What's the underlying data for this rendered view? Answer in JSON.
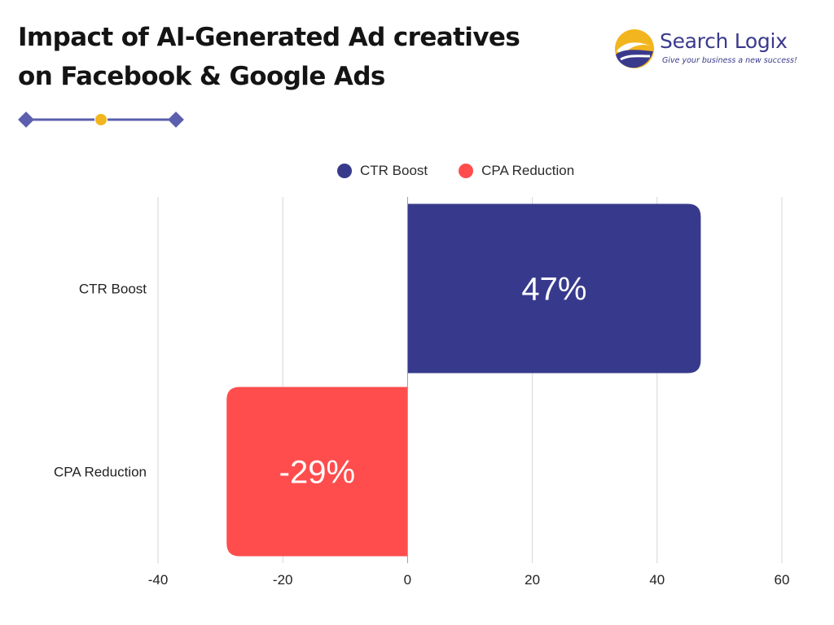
{
  "header": {
    "title_line1": "Impact of AI-Generated Ad creatives",
    "title_line2": "on Facebook & Google Ads"
  },
  "logo": {
    "name": "Search Logix",
    "tagline": "Give your business a new success!"
  },
  "colors": {
    "ctr": "#373a8c",
    "cpa": "#ff4d4d",
    "accent_line": "#5b5fae",
    "accent_dot": "#f2b51d",
    "grid": "#d6d6d6"
  },
  "chart_data": {
    "type": "bar",
    "orientation": "horizontal",
    "categories": [
      "CTR Boost",
      "CPA Reduction"
    ],
    "series": [
      {
        "name": "CTR Boost",
        "category": "CTR Boost",
        "value": 47,
        "label": "47%",
        "color": "#373a8c"
      },
      {
        "name": "CPA Reduction",
        "category": "CPA Reduction",
        "value": -29,
        "label": "-29%",
        "color": "#ff4d4d"
      }
    ],
    "xlim": [
      -40,
      60
    ],
    "xticks": [
      -40,
      -20,
      0,
      20,
      40,
      60
    ],
    "xtick_labels": [
      "-40",
      "-20",
      "0",
      "20",
      "40",
      "60"
    ],
    "grid": true,
    "legend": "top-center",
    "title": "Impact of AI-Generated Ad creatives on Facebook & Google Ads",
    "xlabel": "",
    "ylabel": ""
  }
}
